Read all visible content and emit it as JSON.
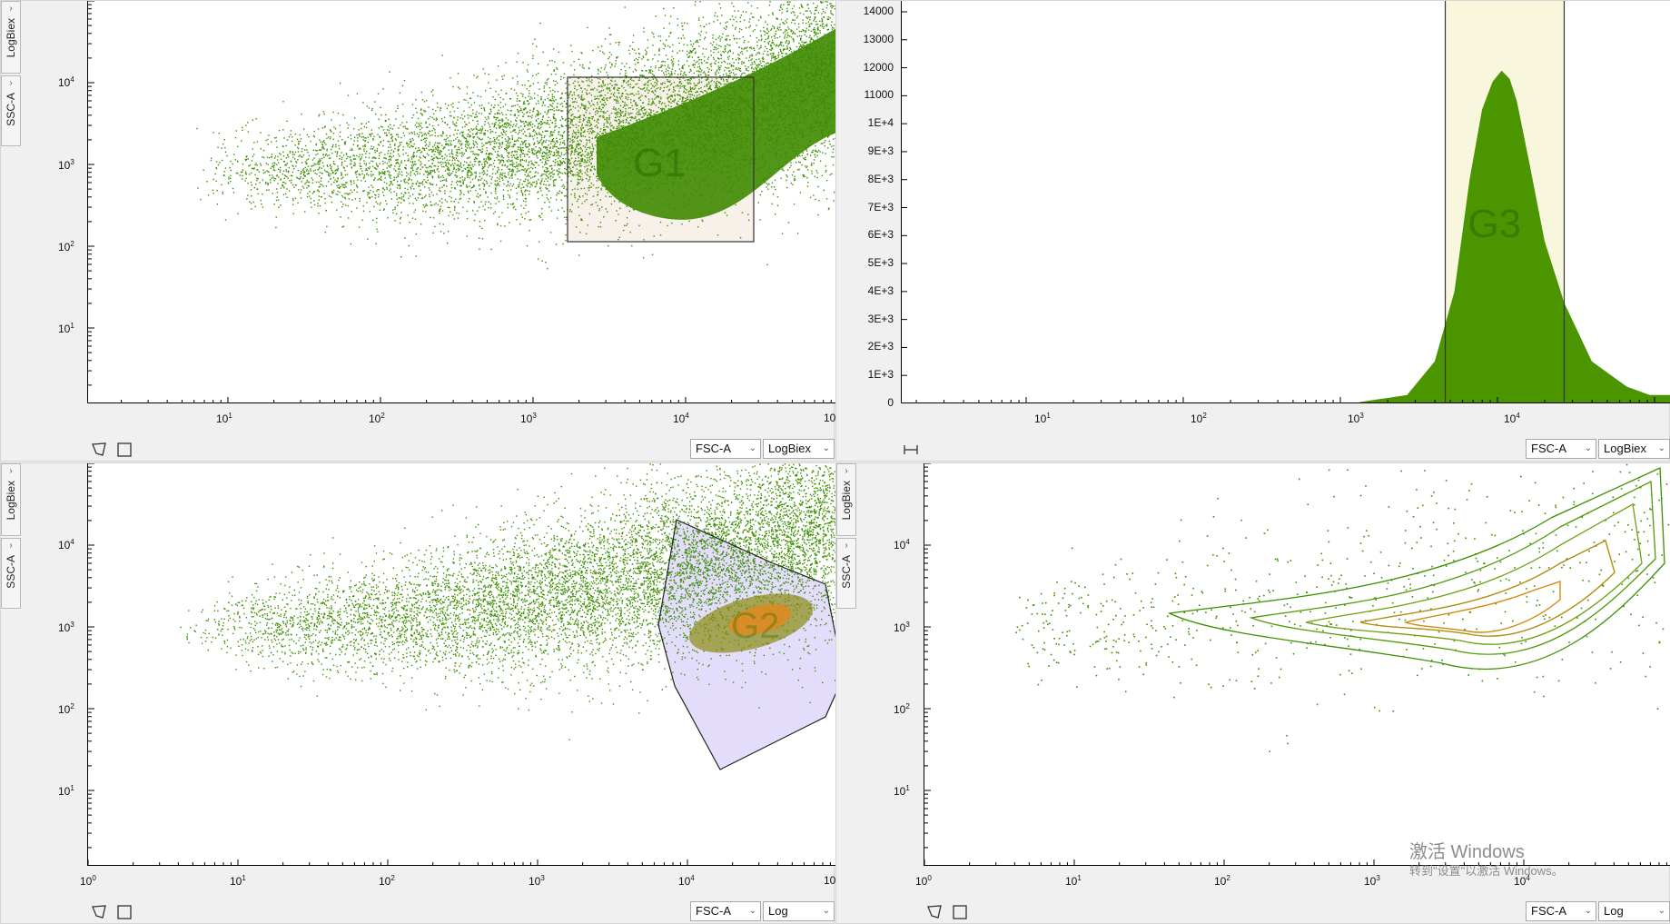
{
  "panels": {
    "top_left": {
      "axis_y": {
        "channel": "SSC-A",
        "scale": "LogBiex"
      },
      "axis_x": {
        "channel": "FSC-A",
        "scale": "LogBiex"
      },
      "gate": {
        "name": "G1",
        "type": "rectangle"
      },
      "tools": [
        "polygon-gate-tool",
        "rectangle-gate-tool"
      ]
    },
    "top_right": {
      "axis_x": {
        "channel": "FSC-A",
        "scale": "LogBiex"
      },
      "gate": {
        "name": "G3",
        "type": "range"
      },
      "tools": [
        "range-gate-tool"
      ]
    },
    "bottom_left": {
      "axis_y": {
        "channel": "SSC-A",
        "scale": "LogBiex"
      },
      "axis_x": {
        "channel": "FSC-A",
        "scale": "Log"
      },
      "gate": {
        "name": "G2",
        "type": "polygon"
      },
      "tools": [
        "polygon-gate-tool",
        "rectangle-gate-tool"
      ]
    },
    "bottom_right": {
      "axis_y": {
        "channel": "SSC-A",
        "scale": "LogBiex"
      },
      "axis_x": {
        "channel": "FSC-A",
        "scale": "Log"
      },
      "tools": [
        "polygon-gate-tool",
        "rectangle-gate-tool"
      ]
    }
  },
  "ticks": {
    "log_y": [
      {
        "sup": "4",
        "label": "10"
      },
      {
        "sup": "3",
        "label": "10"
      },
      {
        "sup": "2",
        "label": "10"
      },
      {
        "sup": "1",
        "label": "10"
      }
    ],
    "logbiex_x": [
      {
        "sup": "1",
        "label": "10"
      },
      {
        "sup": "2",
        "label": "10"
      },
      {
        "sup": "3",
        "label": "10"
      },
      {
        "sup": "4",
        "label": "10"
      },
      {
        "sup": "",
        "label": "10"
      }
    ],
    "log_x": [
      {
        "sup": "0",
        "label": "10"
      },
      {
        "sup": "1",
        "label": "10"
      },
      {
        "sup": "2",
        "label": "10"
      },
      {
        "sup": "3",
        "label": "10"
      },
      {
        "sup": "4",
        "label": "10"
      },
      {
        "sup": "",
        "label": "10"
      }
    ],
    "hist_y": [
      "14000",
      "13000",
      "12000",
      "11000",
      "1E+4",
      "9E+3",
      "8E+3",
      "7E+3",
      "6E+3",
      "5E+3",
      "4E+3",
      "3E+3",
      "2E+3",
      "1E+3",
      "0"
    ]
  },
  "chart_data": {
    "type": "area",
    "title": "",
    "xlabel": "FSC-A",
    "ylabel": "",
    "xscale": "logbiex",
    "ylim": [
      0,
      14000
    ],
    "x": [
      1000,
      2000,
      3000,
      4000,
      5000,
      6000,
      7000,
      8000,
      9000,
      10000,
      12000,
      15000,
      20000,
      30000,
      50000,
      70000
    ],
    "values": [
      50,
      300,
      1500,
      4000,
      8000,
      10500,
      11500,
      11900,
      11600,
      10800,
      8600,
      5800,
      3600,
      1500,
      600,
      300
    ],
    "gate": {
      "name": "G3",
      "range": [
        3500,
        20000
      ]
    }
  },
  "colors": {
    "event_green": "#3c8f00",
    "dense_green": "#3e8a00",
    "hist_fill": "#4a9500",
    "rect_gate_fill": "#f7f1ea",
    "range_gate_fill": "#f8f6dd",
    "poly_gate_fill": "#e3dcfa",
    "heat_orange": "#e08a20",
    "contour_inner": "#d48a10"
  },
  "watermark": {
    "line1": "激活 Windows",
    "line2": "转到\"设置\"以激活 Windows。"
  }
}
